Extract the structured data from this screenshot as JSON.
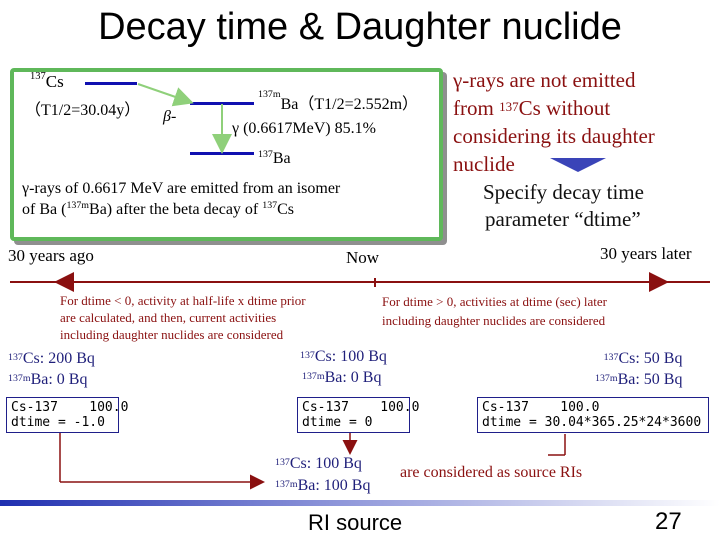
{
  "title": "Decay time & Daughter nuclide",
  "decay_scheme": {
    "parent_mass": "137",
    "parent_symbol": "Cs",
    "parent_halflife": "（T1/2=30.04y）",
    "beta_label": "β-",
    "isomer_mass": "137m",
    "isomer_label": "Ba（T1/2=2.552m）",
    "gamma_label": "γ (0.6617MeV) 85.1%",
    "ground_mass": "137",
    "ground_symbol": "Ba",
    "note_line1": "γ-rays of 0.6617 MeV are emitted from an isomer",
    "note_line2_pre": "of Ba (",
    "note_line2_mass1": "137m",
    "note_line2_mid": "Ba) after the beta decay of ",
    "note_line2_mass2": "137",
    "note_line2_post": "Cs",
    "colors": {
      "border": "#5fb85a",
      "arrow": "#8fd07a",
      "level": "#1010b0"
    }
  },
  "right_note": {
    "line1": "γ-rays are not emitted",
    "line2_pre": "from ",
    "line2_mass": "137",
    "line2_post": "Cs without",
    "line3": "considering its daughter",
    "line4": "nuclide",
    "line5": "Specify decay time",
    "line6": "parameter “dtime”",
    "text_color": "#8a1010",
    "arrow_color": "#3a44b8"
  },
  "timeline": {
    "label_past": "30 years ago",
    "label_now": "Now",
    "label_future": "30 years later",
    "note_past_1": "For dtime < 0, activity at half-life x dtime prior",
    "note_past_2": "are calculated, and then, current activities",
    "note_past_3": "including daughter nuclides are considered",
    "note_future_1": "For dtime > 0, activities at dtime (sec) later",
    "note_future_2": "including daughter nuclides are considered",
    "line_color": "#8a1010"
  },
  "activities": {
    "past": {
      "cs_mass": "137",
      "cs_text": "Cs: 200 Bq",
      "ba_mass": "137m",
      "ba_text": "Ba: 0 Bq"
    },
    "now": {
      "cs_mass": "137",
      "cs_text": "Cs: 100 Bq",
      "ba_mass": "137m",
      "ba_text": "Ba: 0 Bq"
    },
    "future": {
      "cs_mass": "137",
      "cs_text": "Cs: 50 Bq",
      "ba_mass": "137m",
      "ba_text": "Ba: 50 Bq"
    },
    "color": "#1f1f7a"
  },
  "input_boxes": {
    "past": {
      "line1": "Cs-137    100.0",
      "line2": "dtime = -1.0"
    },
    "now": {
      "line1": "Cs-137    100.0",
      "line2": "dtime = 0"
    },
    "future": {
      "line1": "Cs-137    100.0",
      "line2": "dtime = 30.04*365.25*24*3600"
    }
  },
  "result": {
    "cs_mass": "137",
    "cs_text": "Cs: 100 Bq",
    "ba_mass": "137m",
    "ba_text": "Ba: 100 Bq",
    "note": "are considered as source RIs",
    "note_color": "#8a1010"
  },
  "footer": {
    "label": "RI source",
    "page_number": "27"
  }
}
